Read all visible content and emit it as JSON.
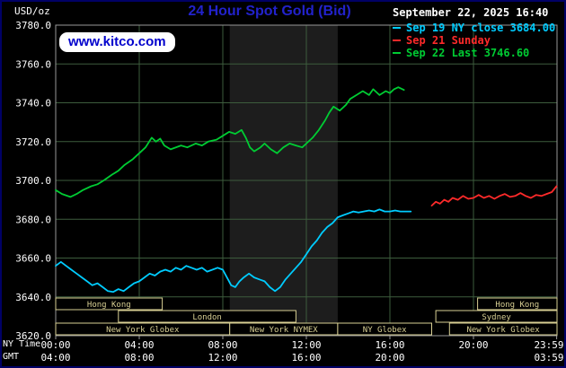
{
  "header": {
    "unit_label": "USD/oz",
    "title": "24 Hour Spot Gold (Bid)",
    "datetime": "September 22, 2025 16:40",
    "watermark": "www.kitco.com"
  },
  "axis_footer": {
    "ny_time_label": "NY Time",
    "gmt_label": "GMT"
  },
  "colors": {
    "background": "#000000",
    "title": "#2222cc",
    "text": "#ffffff",
    "grid": "#3d5c3d",
    "frame": "#999999",
    "band": "#1d1d1d",
    "session_box": "#d8cf93",
    "cyan": "#00ccff",
    "red": "#ff2a2a",
    "green": "#00cc33"
  },
  "chart_data": {
    "type": "line",
    "title": "24 Hour Spot Gold (Bid)",
    "ylabel": "USD/oz",
    "xlabel": "NY Time / GMT",
    "ylim": [
      3620,
      3780
    ],
    "ytick_step": 20,
    "ytick_labels": [
      "3780.0",
      "3760.0",
      "3740.0",
      "3720.0",
      "3700.0",
      "3680.0",
      "3660.0",
      "3640.0",
      "3620.0"
    ],
    "x_hours_range": [
      0,
      24
    ],
    "xtick_hours": [
      0,
      4,
      8,
      12,
      16,
      20,
      23.983
    ],
    "xtick_ny": [
      "00:00",
      "04:00",
      "08:00",
      "12:00",
      "16:00",
      "20:00",
      "23:59"
    ],
    "xtick_gmt": [
      "04:00",
      "08:00",
      "12:00",
      "16:00",
      "20:00",
      "",
      "03:59"
    ],
    "shaded_band_hours": [
      8.33,
      13.5
    ],
    "grid": true,
    "legend_position": "top-right",
    "series": [
      {
        "name": "Sep 19 NY close",
        "legend": "Sep 19 NY close 3684.00",
        "color_key": "cyan",
        "last_value": 3684.0,
        "points": [
          [
            0,
            3656
          ],
          [
            0.25,
            3658
          ],
          [
            0.5,
            3656
          ],
          [
            0.75,
            3654
          ],
          [
            1,
            3652
          ],
          [
            1.25,
            3650
          ],
          [
            1.5,
            3648
          ],
          [
            1.75,
            3646
          ],
          [
            2,
            3647
          ],
          [
            2.25,
            3645
          ],
          [
            2.5,
            3643
          ],
          [
            2.75,
            3642.5
          ],
          [
            3,
            3644
          ],
          [
            3.25,
            3643
          ],
          [
            3.5,
            3645
          ],
          [
            3.75,
            3647
          ],
          [
            4,
            3648
          ],
          [
            4.25,
            3650
          ],
          [
            4.5,
            3652
          ],
          [
            4.75,
            3651
          ],
          [
            5,
            3653
          ],
          [
            5.25,
            3654
          ],
          [
            5.5,
            3653
          ],
          [
            5.75,
            3655
          ],
          [
            6,
            3654
          ],
          [
            6.25,
            3656
          ],
          [
            6.5,
            3655
          ],
          [
            6.75,
            3654
          ],
          [
            7,
            3655
          ],
          [
            7.25,
            3653
          ],
          [
            7.5,
            3654
          ],
          [
            7.75,
            3655
          ],
          [
            8,
            3654
          ],
          [
            8.2,
            3650
          ],
          [
            8.4,
            3646
          ],
          [
            8.6,
            3645
          ],
          [
            8.8,
            3648
          ],
          [
            9,
            3650
          ],
          [
            9.25,
            3652
          ],
          [
            9.5,
            3650
          ],
          [
            9.75,
            3649
          ],
          [
            10,
            3648
          ],
          [
            10.25,
            3645
          ],
          [
            10.5,
            3643
          ],
          [
            10.75,
            3645
          ],
          [
            11,
            3649
          ],
          [
            11.25,
            3652
          ],
          [
            11.5,
            3655
          ],
          [
            11.75,
            3658
          ],
          [
            12,
            3662
          ],
          [
            12.25,
            3666
          ],
          [
            12.5,
            3669
          ],
          [
            12.75,
            3673
          ],
          [
            13,
            3676
          ],
          [
            13.25,
            3678
          ],
          [
            13.5,
            3681
          ],
          [
            13.75,
            3682
          ],
          [
            14,
            3683
          ],
          [
            14.25,
            3684
          ],
          [
            14.5,
            3683.5
          ],
          [
            14.75,
            3684
          ],
          [
            15,
            3684.5
          ],
          [
            15.25,
            3684
          ],
          [
            15.5,
            3685
          ],
          [
            15.75,
            3684
          ],
          [
            16,
            3684
          ],
          [
            16.25,
            3684.5
          ],
          [
            16.5,
            3684
          ],
          [
            16.75,
            3684
          ],
          [
            17,
            3684
          ]
        ]
      },
      {
        "name": "Sep 21 Sunday",
        "legend": "Sep 21 Sunday",
        "color_key": "red",
        "points": [
          [
            18,
            3687
          ],
          [
            18.2,
            3689
          ],
          [
            18.4,
            3688
          ],
          [
            18.6,
            3690
          ],
          [
            18.8,
            3689
          ],
          [
            19,
            3691
          ],
          [
            19.25,
            3690
          ],
          [
            19.5,
            3692
          ],
          [
            19.75,
            3690.5
          ],
          [
            20,
            3691
          ],
          [
            20.25,
            3692.5
          ],
          [
            20.5,
            3691
          ],
          [
            20.75,
            3692
          ],
          [
            21,
            3690.5
          ],
          [
            21.25,
            3692
          ],
          [
            21.5,
            3693
          ],
          [
            21.75,
            3691.5
          ],
          [
            22,
            3692
          ],
          [
            22.25,
            3693.5
          ],
          [
            22.5,
            3692
          ],
          [
            22.75,
            3691
          ],
          [
            23,
            3692.5
          ],
          [
            23.25,
            3692
          ],
          [
            23.5,
            3693
          ],
          [
            23.75,
            3694
          ],
          [
            23.98,
            3697
          ]
        ]
      },
      {
        "name": "Sep 22 Last",
        "legend": "Sep 22 Last 3746.60",
        "color_key": "green",
        "last_value": 3746.6,
        "points": [
          [
            0,
            3695
          ],
          [
            0.3,
            3693
          ],
          [
            0.7,
            3691.5
          ],
          [
            1,
            3693
          ],
          [
            1.3,
            3695
          ],
          [
            1.7,
            3697
          ],
          [
            2,
            3698
          ],
          [
            2.3,
            3700
          ],
          [
            2.7,
            3703
          ],
          [
            3,
            3705
          ],
          [
            3.3,
            3708
          ],
          [
            3.7,
            3711
          ],
          [
            4,
            3714
          ],
          [
            4.3,
            3717
          ],
          [
            4.6,
            3722
          ],
          [
            4.8,
            3720
          ],
          [
            5,
            3721.5
          ],
          [
            5.2,
            3718
          ],
          [
            5.5,
            3716
          ],
          [
            6,
            3718
          ],
          [
            6.3,
            3717
          ],
          [
            6.7,
            3719
          ],
          [
            7,
            3718
          ],
          [
            7.3,
            3720
          ],
          [
            7.7,
            3721
          ],
          [
            8,
            3723
          ],
          [
            8.3,
            3725
          ],
          [
            8.6,
            3724
          ],
          [
            8.9,
            3726
          ],
          [
            9.1,
            3722
          ],
          [
            9.3,
            3717
          ],
          [
            9.5,
            3715
          ],
          [
            9.8,
            3717
          ],
          [
            10,
            3719
          ],
          [
            10.3,
            3716
          ],
          [
            10.6,
            3714
          ],
          [
            10.9,
            3717
          ],
          [
            11.2,
            3719
          ],
          [
            11.5,
            3718
          ],
          [
            11.8,
            3717
          ],
          [
            12,
            3719
          ],
          [
            12.3,
            3722
          ],
          [
            12.6,
            3726
          ],
          [
            12.9,
            3731
          ],
          [
            13.1,
            3735
          ],
          [
            13.3,
            3738
          ],
          [
            13.6,
            3736
          ],
          [
            13.9,
            3739
          ],
          [
            14.1,
            3742
          ],
          [
            14.4,
            3744
          ],
          [
            14.7,
            3746
          ],
          [
            15,
            3744
          ],
          [
            15.2,
            3747
          ],
          [
            15.5,
            3744
          ],
          [
            15.8,
            3746
          ],
          [
            16,
            3745
          ],
          [
            16.2,
            3747
          ],
          [
            16.4,
            3748
          ],
          [
            16.67,
            3746.6
          ]
        ]
      }
    ],
    "sessions": [
      {
        "row": 0,
        "label": "Hong Kong",
        "start": 0,
        "end": 5.1
      },
      {
        "row": 0,
        "label": "Hong Kong",
        "start": 20.2,
        "end": 24
      },
      {
        "row": 1,
        "label": "London",
        "start": 3.0,
        "end": 11.5
      },
      {
        "row": 1,
        "label": "Sydney",
        "start": 18.2,
        "end": 24
      },
      {
        "row": 2,
        "label": "New York Globex",
        "start": 0,
        "end": 8.33
      },
      {
        "row": 2,
        "label": "New York NYMEX",
        "start": 8.33,
        "end": 13.5
      },
      {
        "row": 2,
        "label": "NY Globex",
        "start": 13.5,
        "end": 18.0
      },
      {
        "row": 2,
        "label": "New York Globex",
        "start": 18.85,
        "end": 24
      }
    ]
  }
}
